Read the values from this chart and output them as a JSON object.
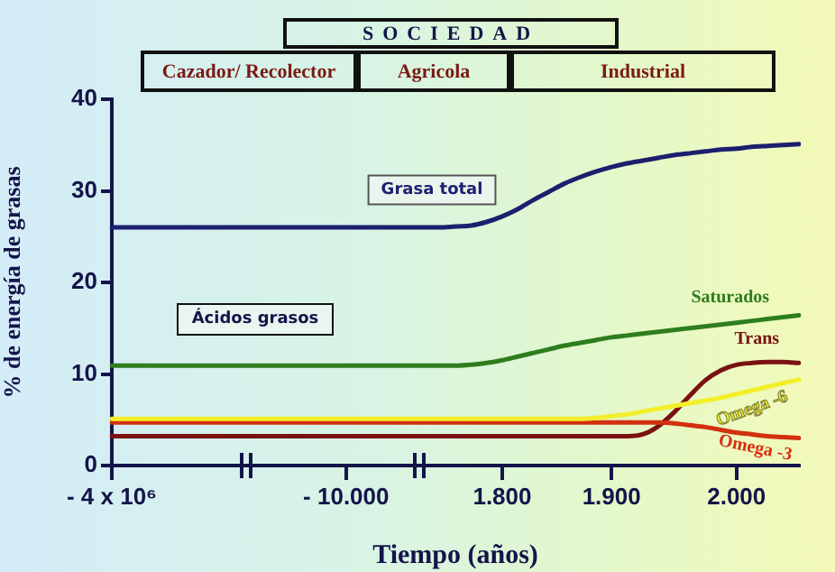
{
  "chart_data": {
    "type": "line",
    "xlabel": "Tiempo (años)",
    "ylabel": "% de energía de grasas",
    "categories": [
      "- 4 x 10⁶",
      null,
      null,
      null,
      null,
      null,
      null,
      null,
      null,
      null,
      null,
      null,
      null,
      null,
      null,
      "- 10.000",
      null,
      null,
      null,
      null,
      null,
      null,
      null,
      null,
      null,
      "1.800",
      null,
      null,
      null,
      null,
      null,
      null,
      "1.900",
      null,
      null,
      null,
      null,
      null,
      null,
      null,
      "2.000",
      null,
      null,
      null,
      null
    ],
    "ylim": [
      0,
      40
    ],
    "yticks": [
      0,
      10,
      20,
      30,
      40
    ],
    "annotations": [
      "SOCIEDAD",
      "Cazador/ Recolector",
      "Agricola",
      "Industrial",
      "Ácidos grasos"
    ],
    "series": [
      {
        "name": "Grasa total",
        "color": "#1c1f6e",
        "values": [
          26,
          26,
          26,
          26,
          26,
          26,
          26,
          26,
          26,
          26,
          26,
          26,
          26,
          26,
          26,
          26,
          26,
          26,
          26,
          26,
          26,
          26,
          26.1,
          26.2,
          26.6,
          27.2,
          28,
          29,
          29.9,
          30.8,
          31.5,
          32.1,
          32.6,
          33,
          33.3,
          33.6,
          33.9,
          34.1,
          34.3,
          34.5,
          34.6,
          34.8,
          34.9,
          35,
          35.1
        ]
      },
      {
        "name": "Saturados",
        "color": "#2e7d1e",
        "values": [
          10.9,
          10.9,
          10.9,
          10.9,
          10.9,
          10.9,
          10.9,
          10.9,
          10.9,
          10.9,
          10.9,
          10.9,
          10.9,
          10.9,
          10.9,
          10.9,
          10.9,
          10.9,
          10.9,
          10.9,
          10.9,
          10.9,
          10.9,
          11,
          11.2,
          11.5,
          11.9,
          12.3,
          12.7,
          13.1,
          13.4,
          13.7,
          14,
          14.2,
          14.4,
          14.6,
          14.8,
          15,
          15.2,
          15.4,
          15.6,
          15.8,
          16,
          16.2,
          16.4
        ]
      },
      {
        "name": "Omega -6",
        "color": "#f2ef2a",
        "values": [
          5.1,
          5.1,
          5.1,
          5.1,
          5.1,
          5.1,
          5.1,
          5.1,
          5.1,
          5.1,
          5.1,
          5.1,
          5.1,
          5.1,
          5.1,
          5.1,
          5.1,
          5.1,
          5.1,
          5.1,
          5.1,
          5.1,
          5.1,
          5.1,
          5.1,
          5.1,
          5.1,
          5.1,
          5.1,
          5.1,
          5.1,
          5.2,
          5.4,
          5.6,
          5.9,
          6.2,
          6.5,
          6.8,
          7.1,
          7.4,
          7.8,
          8.2,
          8.6,
          9,
          9.4
        ]
      },
      {
        "name": "Omega -3",
        "color": "#d3300f",
        "values": [
          4.7,
          4.7,
          4.7,
          4.7,
          4.7,
          4.7,
          4.7,
          4.7,
          4.7,
          4.7,
          4.7,
          4.7,
          4.7,
          4.7,
          4.7,
          4.7,
          4.7,
          4.7,
          4.7,
          4.7,
          4.7,
          4.7,
          4.7,
          4.7,
          4.7,
          4.7,
          4.7,
          4.7,
          4.7,
          4.7,
          4.7,
          4.7,
          4.7,
          4.7,
          4.7,
          4.7,
          4.6,
          4.4,
          4.2,
          3.9,
          3.6,
          3.4,
          3.2,
          3.1,
          3.0
        ]
      },
      {
        "name": "Trans",
        "color": "#7a1212",
        "values": [
          3.2,
          3.2,
          3.2,
          3.2,
          3.2,
          3.2,
          3.2,
          3.2,
          3.2,
          3.2,
          3.2,
          3.2,
          3.2,
          3.2,
          3.2,
          3.2,
          3.2,
          3.2,
          3.2,
          3.2,
          3.2,
          3.2,
          3.2,
          3.2,
          3.2,
          3.2,
          3.2,
          3.2,
          3.2,
          3.2,
          3.2,
          3.2,
          3.2,
          3.2,
          3.4,
          4.3,
          5.8,
          7.6,
          9.3,
          10.4,
          11,
          11.2,
          11.3,
          11.3,
          11.2
        ]
      }
    ]
  }
}
